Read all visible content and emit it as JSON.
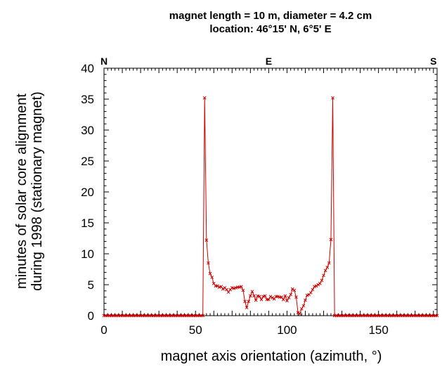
{
  "chart_data": {
    "type": "line",
    "title_lines": [
      "magnet length = 10 m, diameter = 4.2 cm",
      "location: 46°15' N, 6°5' E"
    ],
    "xlabel": "magnet axis orientation (azimuth, °)",
    "ylabel_lines": [
      "minutes of solar core alignment",
      "during 1998 (stationary magnet)"
    ],
    "xlim": [
      0,
      182
    ],
    "ylim": [
      0,
      40
    ],
    "xticks": [
      0,
      50,
      100,
      150
    ],
    "xtick_labels": [
      "0",
      "50",
      "100",
      "150"
    ],
    "yticks": [
      0,
      5,
      10,
      15,
      20,
      25,
      30,
      35,
      40
    ],
    "ytick_labels": [
      "0",
      "5",
      "10",
      "15",
      "20",
      "25",
      "30",
      "35",
      "40"
    ],
    "top_labels": [
      {
        "x": 0,
        "text": "N"
      },
      {
        "x": 90,
        "text": "E"
      },
      {
        "x": 180,
        "text": "S"
      }
    ],
    "grid": false,
    "legend": "none",
    "series": [
      {
        "color": "#cc0000",
        "marker": "x",
        "points": [
          [
            0,
            0
          ],
          [
            1,
            0
          ],
          [
            2,
            0
          ],
          [
            3,
            0
          ],
          [
            4,
            0
          ],
          [
            5,
            0
          ],
          [
            6,
            0
          ],
          [
            7,
            0
          ],
          [
            8,
            0
          ],
          [
            9,
            0
          ],
          [
            10,
            0
          ],
          [
            11,
            0
          ],
          [
            12,
            0
          ],
          [
            13,
            0
          ],
          [
            14,
            0
          ],
          [
            15,
            0
          ],
          [
            16,
            0
          ],
          [
            17,
            0
          ],
          [
            18,
            0
          ],
          [
            19,
            0
          ],
          [
            20,
            0
          ],
          [
            21,
            0
          ],
          [
            22,
            0
          ],
          [
            23,
            0
          ],
          [
            24,
            0
          ],
          [
            25,
            0
          ],
          [
            26,
            0
          ],
          [
            27,
            0
          ],
          [
            28,
            0
          ],
          [
            29,
            0
          ],
          [
            30,
            0
          ],
          [
            31,
            0
          ],
          [
            32,
            0
          ],
          [
            33,
            0
          ],
          [
            34,
            0
          ],
          [
            35,
            0
          ],
          [
            36,
            0
          ],
          [
            37,
            0
          ],
          [
            38,
            0
          ],
          [
            39,
            0
          ],
          [
            40,
            0
          ],
          [
            41,
            0
          ],
          [
            42,
            0
          ],
          [
            43,
            0
          ],
          [
            44,
            0
          ],
          [
            45,
            0
          ],
          [
            46,
            0
          ],
          [
            47,
            0
          ],
          [
            48,
            0
          ],
          [
            49,
            0
          ],
          [
            50,
            0
          ],
          [
            51,
            0
          ],
          [
            52,
            0
          ],
          [
            53,
            0
          ],
          [
            54,
            0
          ],
          [
            55,
            35.2
          ],
          [
            56,
            12.2
          ],
          [
            57,
            8.5
          ],
          [
            58,
            6.8
          ],
          [
            59,
            6.2
          ],
          [
            60,
            5.2
          ],
          [
            61,
            4.8
          ],
          [
            62,
            4.8
          ],
          [
            63,
            4.6
          ],
          [
            64,
            4.7
          ],
          [
            65,
            4.3
          ],
          [
            66,
            4.5
          ],
          [
            67,
            4.2
          ],
          [
            68,
            3.8
          ],
          [
            69,
            4.2
          ],
          [
            70,
            4.5
          ],
          [
            71,
            4.4
          ],
          [
            72,
            4.5
          ],
          [
            73,
            4.6
          ],
          [
            74,
            4.6
          ],
          [
            75,
            4.7
          ],
          [
            76,
            4.1
          ],
          [
            77,
            2.3
          ],
          [
            78,
            1.3
          ],
          [
            79,
            2.3
          ],
          [
            80,
            3.2
          ],
          [
            81,
            3.9
          ],
          [
            82,
            3.2
          ],
          [
            83,
            2.5
          ],
          [
            84,
            3.2
          ],
          [
            85,
            3.1
          ],
          [
            86,
            2.6
          ],
          [
            87,
            3.1
          ],
          [
            88,
            3.2
          ],
          [
            89,
            2.6
          ],
          [
            90,
            2.6
          ],
          [
            91,
            3.1
          ],
          [
            92,
            2.9
          ],
          [
            93,
            2.7
          ],
          [
            94,
            3.1
          ],
          [
            95,
            3.1
          ],
          [
            96,
            3.0
          ],
          [
            97,
            3.0
          ],
          [
            98,
            2.6
          ],
          [
            99,
            3.2
          ],
          [
            100,
            2.4
          ],
          [
            101,
            2.9
          ],
          [
            102,
            3.4
          ],
          [
            103,
            4.3
          ],
          [
            104,
            4.1
          ],
          [
            105,
            3.0
          ],
          [
            106,
            0.5
          ],
          [
            107,
            0.3
          ],
          [
            108,
            1.1
          ],
          [
            109,
            1.6
          ],
          [
            110,
            2.5
          ],
          [
            111,
            3.3
          ],
          [
            112,
            3.4
          ],
          [
            113,
            3.7
          ],
          [
            114,
            4.2
          ],
          [
            115,
            4.7
          ],
          [
            116,
            4.8
          ],
          [
            117,
            5.0
          ],
          [
            118,
            5.2
          ],
          [
            119,
            5.7
          ],
          [
            120,
            6.5
          ],
          [
            121,
            7.3
          ],
          [
            122,
            7.8
          ],
          [
            123,
            8.5
          ],
          [
            124,
            12.3
          ],
          [
            125,
            35.2
          ],
          [
            126,
            0
          ],
          [
            127,
            0
          ],
          [
            128,
            0
          ],
          [
            129,
            0
          ],
          [
            130,
            0
          ],
          [
            131,
            0
          ],
          [
            132,
            0
          ],
          [
            133,
            0
          ],
          [
            134,
            0
          ],
          [
            135,
            0
          ],
          [
            136,
            0
          ],
          [
            137,
            0
          ],
          [
            138,
            0
          ],
          [
            139,
            0
          ],
          [
            140,
            0
          ],
          [
            141,
            0
          ],
          [
            142,
            0
          ],
          [
            143,
            0
          ],
          [
            144,
            0
          ],
          [
            145,
            0
          ],
          [
            146,
            0
          ],
          [
            147,
            0
          ],
          [
            148,
            0
          ],
          [
            149,
            0
          ],
          [
            150,
            0
          ],
          [
            151,
            0
          ],
          [
            152,
            0
          ],
          [
            153,
            0
          ],
          [
            154,
            0
          ],
          [
            155,
            0
          ],
          [
            156,
            0
          ],
          [
            157,
            0
          ],
          [
            158,
            0
          ],
          [
            159,
            0
          ],
          [
            160,
            0
          ],
          [
            161,
            0
          ],
          [
            162,
            0
          ],
          [
            163,
            0
          ],
          [
            164,
            0
          ],
          [
            165,
            0
          ],
          [
            166,
            0
          ],
          [
            167,
            0
          ],
          [
            168,
            0
          ],
          [
            169,
            0
          ],
          [
            170,
            0
          ],
          [
            171,
            0
          ],
          [
            172,
            0
          ],
          [
            173,
            0
          ],
          [
            174,
            0
          ],
          [
            175,
            0
          ],
          [
            176,
            0
          ],
          [
            177,
            0
          ],
          [
            178,
            0
          ],
          [
            179,
            0
          ],
          [
            180,
            0
          ],
          [
            181,
            0
          ],
          [
            182,
            0
          ]
        ]
      }
    ]
  }
}
